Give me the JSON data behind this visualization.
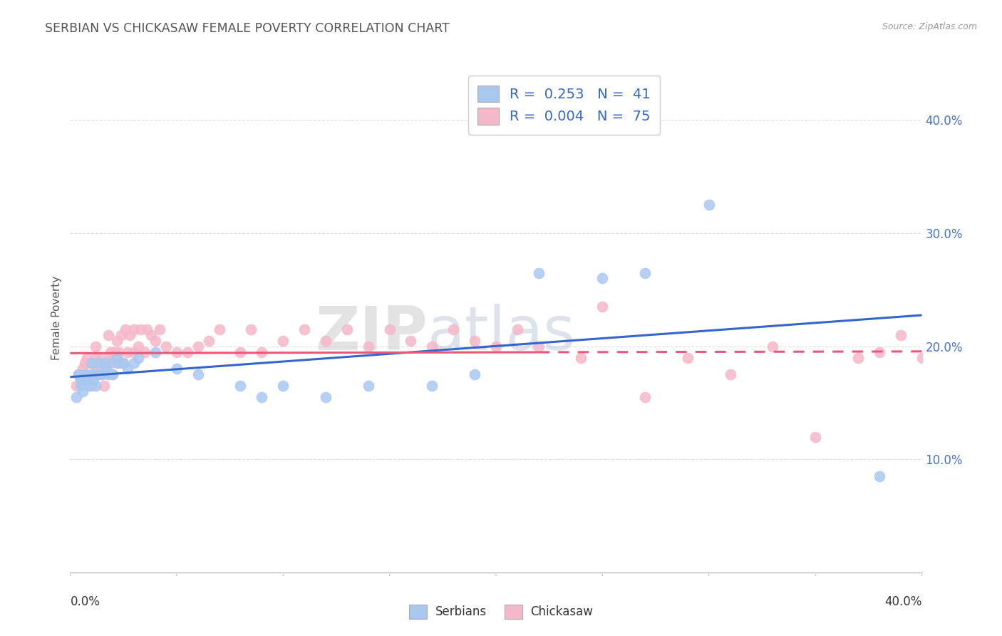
{
  "title": "SERBIAN VS CHICKASAW FEMALE POVERTY CORRELATION CHART",
  "source": "Source: ZipAtlas.com",
  "ylabel": "Female Poverty",
  "ytick_labels": [
    "10.0%",
    "20.0%",
    "30.0%",
    "40.0%"
  ],
  "ytick_values": [
    0.1,
    0.2,
    0.3,
    0.4
  ],
  "xlim": [
    0.0,
    0.4
  ],
  "ylim": [
    0.0,
    0.45
  ],
  "legend_serbian_r": "0.253",
  "legend_serbian_n": "41",
  "legend_chickasaw_r": "0.004",
  "legend_chickasaw_n": "75",
  "serbian_color": "#A8C8F0",
  "chickasaw_color": "#F5B8C8",
  "serbian_line_color": "#3366CC",
  "chickasaw_line_color": "#EE5577",
  "watermark_ZIP": "ZIP",
  "watermark_atlas": "atlas",
  "background_color": "#FFFFFF",
  "grid_color": "#DDDDDD",
  "serbians_x": [
    0.003,
    0.004,
    0.005,
    0.005,
    0.006,
    0.007,
    0.008,
    0.009,
    0.01,
    0.01,
    0.011,
    0.012,
    0.013,
    0.013,
    0.015,
    0.016,
    0.017,
    0.018,
    0.019,
    0.02,
    0.022,
    0.023,
    0.025,
    0.027,
    0.03,
    0.032,
    0.04,
    0.05,
    0.06,
    0.08,
    0.09,
    0.1,
    0.12,
    0.14,
    0.17,
    0.19,
    0.22,
    0.25,
    0.27,
    0.3,
    0.38
  ],
  "serbians_y": [
    0.155,
    0.175,
    0.165,
    0.17,
    0.16,
    0.175,
    0.17,
    0.165,
    0.175,
    0.185,
    0.17,
    0.165,
    0.185,
    0.175,
    0.175,
    0.185,
    0.18,
    0.175,
    0.185,
    0.175,
    0.19,
    0.185,
    0.185,
    0.18,
    0.185,
    0.19,
    0.195,
    0.18,
    0.175,
    0.165,
    0.155,
    0.165,
    0.155,
    0.165,
    0.165,
    0.175,
    0.265,
    0.26,
    0.265,
    0.325,
    0.085
  ],
  "chickasaws_x": [
    0.003,
    0.004,
    0.005,
    0.006,
    0.007,
    0.008,
    0.009,
    0.01,
    0.01,
    0.011,
    0.012,
    0.012,
    0.013,
    0.013,
    0.014,
    0.015,
    0.015,
    0.016,
    0.017,
    0.018,
    0.018,
    0.019,
    0.02,
    0.02,
    0.021,
    0.022,
    0.022,
    0.023,
    0.024,
    0.025,
    0.026,
    0.027,
    0.028,
    0.03,
    0.03,
    0.032,
    0.033,
    0.035,
    0.036,
    0.038,
    0.04,
    0.042,
    0.045,
    0.05,
    0.055,
    0.06,
    0.065,
    0.07,
    0.08,
    0.085,
    0.09,
    0.1,
    0.11,
    0.12,
    0.13,
    0.14,
    0.15,
    0.16,
    0.17,
    0.18,
    0.19,
    0.2,
    0.21,
    0.22,
    0.24,
    0.25,
    0.27,
    0.29,
    0.31,
    0.33,
    0.35,
    0.37,
    0.38,
    0.39,
    0.4
  ],
  "chickasaws_y": [
    0.165,
    0.175,
    0.17,
    0.18,
    0.185,
    0.19,
    0.17,
    0.165,
    0.185,
    0.175,
    0.19,
    0.2,
    0.18,
    0.175,
    0.185,
    0.175,
    0.19,
    0.165,
    0.185,
    0.175,
    0.21,
    0.195,
    0.175,
    0.19,
    0.195,
    0.185,
    0.205,
    0.195,
    0.21,
    0.185,
    0.215,
    0.195,
    0.21,
    0.195,
    0.215,
    0.2,
    0.215,
    0.195,
    0.215,
    0.21,
    0.205,
    0.215,
    0.2,
    0.195,
    0.195,
    0.2,
    0.205,
    0.215,
    0.195,
    0.215,
    0.195,
    0.205,
    0.215,
    0.205,
    0.215,
    0.2,
    0.215,
    0.205,
    0.2,
    0.215,
    0.205,
    0.2,
    0.215,
    0.2,
    0.19,
    0.235,
    0.155,
    0.19,
    0.175,
    0.2,
    0.12,
    0.19,
    0.195,
    0.21,
    0.19
  ]
}
